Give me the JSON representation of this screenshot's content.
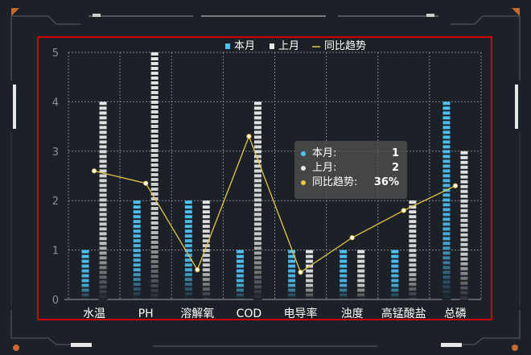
{
  "colors": {
    "current": "#4fc3f7",
    "previous": "#e6e6e6",
    "trend": "#e6c84a",
    "highlight_box": "#d10000",
    "accent": "#c76a2f"
  },
  "chart_data": {
    "type": "bar",
    "categories": [
      "水温",
      "PH",
      "溶解氧",
      "COD",
      "电导率",
      "浊度",
      "高锰酸盐",
      "总磷"
    ],
    "ylim": [
      0,
      5
    ],
    "yticks": [
      0,
      1,
      2,
      3,
      4,
      5
    ],
    "grid": true,
    "legend_position": "top-center",
    "series": [
      {
        "name": "本月",
        "type": "bar",
        "values": [
          1,
          2,
          2,
          1,
          1,
          1,
          1,
          4
        ]
      },
      {
        "name": "上月",
        "type": "bar",
        "values": [
          4,
          5,
          2,
          4,
          1,
          1,
          2,
          3
        ]
      },
      {
        "name": "同比趋势",
        "type": "line",
        "values": [
          2.6,
          2.35,
          0.6,
          3.3,
          0.55,
          1.25,
          1.8,
          2.3
        ]
      }
    ]
  },
  "tooltip": {
    "rows": [
      {
        "label": "本月:",
        "value": "1"
      },
      {
        "label": "上月:",
        "value": "2"
      },
      {
        "label": "同比趋势:",
        "value": "36%"
      }
    ]
  }
}
